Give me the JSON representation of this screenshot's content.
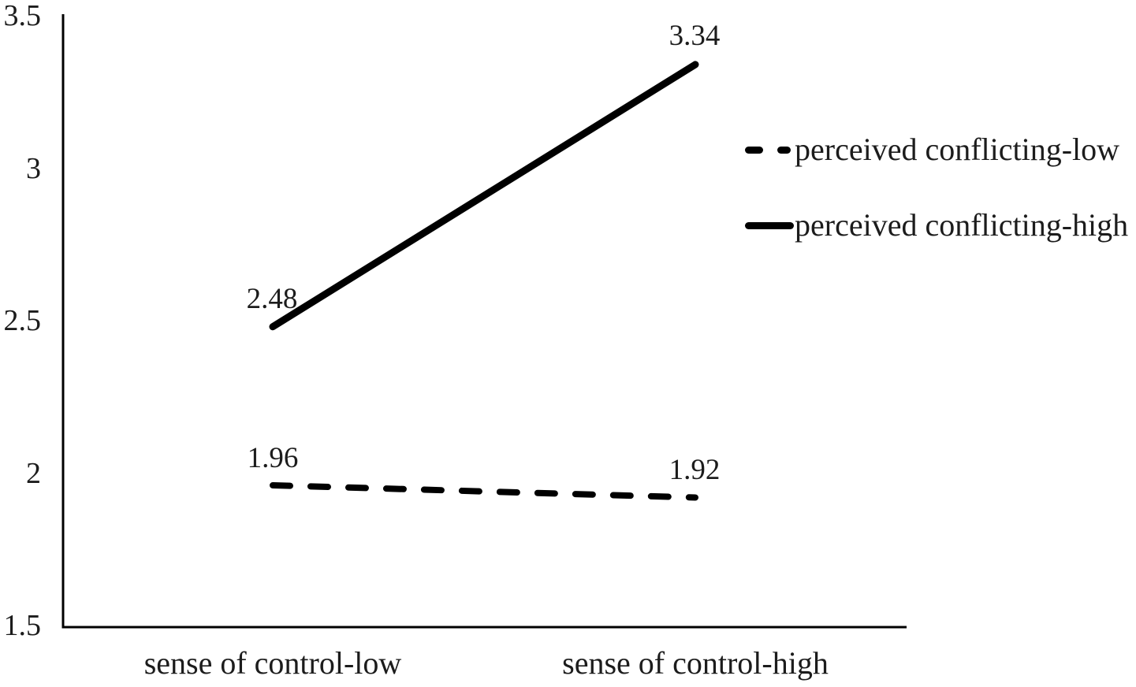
{
  "chart_data": {
    "type": "line",
    "title": "",
    "xlabel": "",
    "ylabel": "",
    "categories": [
      "sense of control-low",
      "sense of control-high"
    ],
    "series": [
      {
        "name": "perceived conflicting-low",
        "line_style": "dashed",
        "values": [
          1.96,
          1.92
        ]
      },
      {
        "name": "perceived conflicting-high",
        "line_style": "solid",
        "values": [
          2.48,
          3.34
        ]
      }
    ],
    "ylim": [
      1.5,
      3.5
    ],
    "yticks": [
      "3.5",
      "3",
      "2.5",
      "2",
      "1.5"
    ],
    "grid": false,
    "markers": false,
    "legend_position": "right",
    "line_color": "#000000",
    "text_color": "#1c1c1c",
    "background_color": "#ffffff"
  }
}
